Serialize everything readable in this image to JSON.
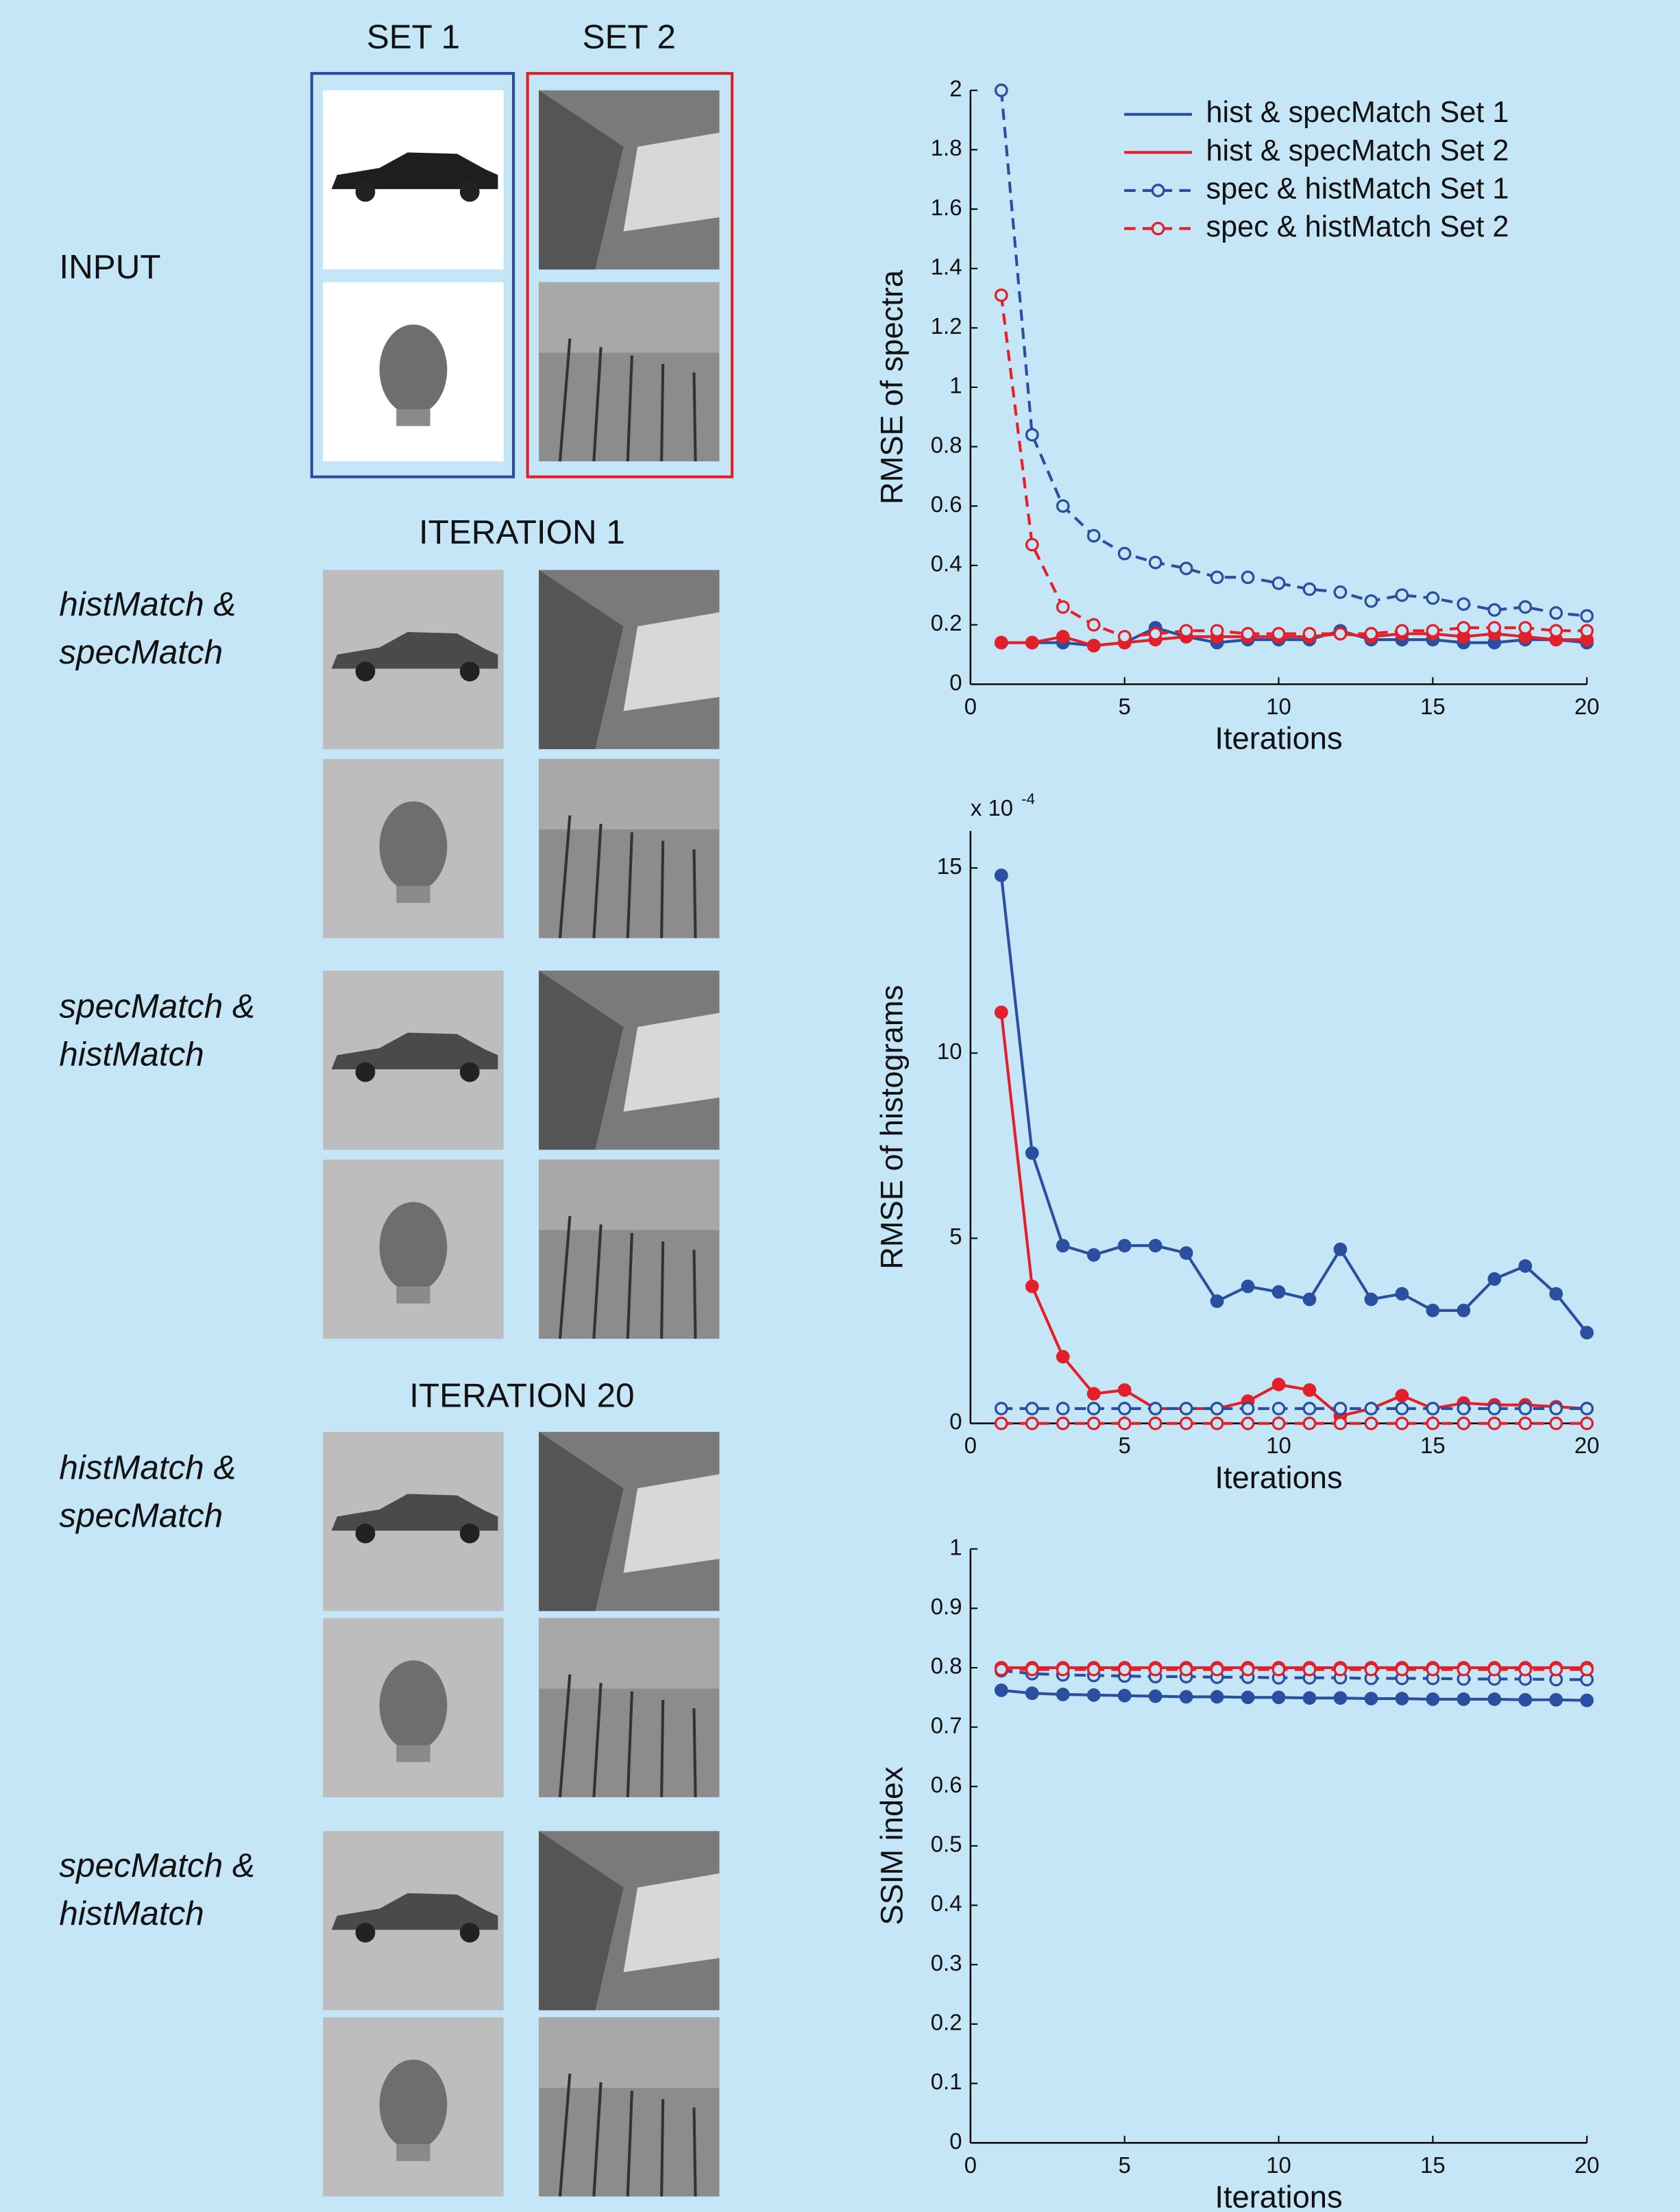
{
  "panel": {
    "column_headers": [
      "SET 1",
      "SET 2"
    ],
    "input_label": "INPUT",
    "sections": [
      {
        "title": "ITERATION 1",
        "rows": [
          [
            "histMatch &",
            "specMatch"
          ],
          [
            "specMatch &",
            "histMatch"
          ]
        ]
      },
      {
        "title": "ITERATION 20",
        "rows": [
          [
            "histMatch &",
            "specMatch"
          ],
          [
            "specMatch &",
            "histMatch"
          ]
        ]
      }
    ]
  },
  "chart_data": [
    {
      "type": "line",
      "y_label": "RMSE of spectra",
      "x_label": "Iterations",
      "x": [
        1,
        2,
        3,
        4,
        5,
        6,
        7,
        8,
        9,
        10,
        11,
        12,
        13,
        14,
        15,
        16,
        17,
        18,
        19,
        20
      ],
      "xlim": [
        0,
        20
      ],
      "xticks": [
        0,
        5,
        10,
        15,
        20
      ],
      "ylim": [
        0,
        2
      ],
      "yticks": [
        0,
        0.2,
        0.4,
        0.6,
        0.8,
        1,
        1.2,
        1.4,
        1.6,
        1.8,
        2
      ],
      "legend": "upper right",
      "series": [
        {
          "name": "hist & specMatch Set 1",
          "color": "#2a4ea0",
          "linestyle": "solid",
          "marker": "filled",
          "values": [
            0.14,
            0.14,
            0.14,
            0.13,
            0.14,
            0.19,
            0.16,
            0.14,
            0.15,
            0.15,
            0.15,
            0.18,
            0.15,
            0.15,
            0.15,
            0.14,
            0.14,
            0.15,
            0.15,
            0.14
          ]
        },
        {
          "name": "hist & specMatch Set 2",
          "color": "#e3202a",
          "linestyle": "solid",
          "marker": "filled",
          "values": [
            0.14,
            0.14,
            0.16,
            0.13,
            0.14,
            0.15,
            0.16,
            0.16,
            0.16,
            0.16,
            0.16,
            0.17,
            0.16,
            0.17,
            0.17,
            0.16,
            0.17,
            0.16,
            0.15,
            0.15
          ]
        },
        {
          "name": "spec & histMatch Set 1",
          "color": "#2a4ea0",
          "linestyle": "dashed",
          "marker": "open",
          "values": [
            2.0,
            0.84,
            0.6,
            0.5,
            0.44,
            0.41,
            0.39,
            0.36,
            0.36,
            0.34,
            0.32,
            0.31,
            0.28,
            0.3,
            0.29,
            0.27,
            0.25,
            0.26,
            0.24,
            0.23
          ]
        },
        {
          "name": "spec & histMatch Set 2",
          "color": "#e3202a",
          "linestyle": "dashed",
          "marker": "open",
          "values": [
            1.31,
            0.47,
            0.26,
            0.2,
            0.16,
            0.17,
            0.18,
            0.18,
            0.17,
            0.17,
            0.17,
            0.17,
            0.17,
            0.18,
            0.18,
            0.19,
            0.19,
            0.19,
            0.18,
            0.18
          ]
        }
      ]
    },
    {
      "type": "line",
      "y_label": "RMSE of histograms",
      "x_label": "Iterations",
      "y_multiplier": "x 10",
      "y_multiplier_exponent": "-4",
      "x": [
        1,
        2,
        3,
        4,
        5,
        6,
        7,
        8,
        9,
        10,
        11,
        12,
        13,
        14,
        15,
        16,
        17,
        18,
        19,
        20
      ],
      "xlim": [
        0,
        20
      ],
      "xticks": [
        0,
        5,
        10,
        15,
        20
      ],
      "ylim": [
        0,
        16
      ],
      "yticks": [
        0,
        5,
        10,
        15
      ],
      "series": [
        {
          "color": "#2a4ea0",
          "linestyle": "solid",
          "marker": "filled",
          "values": [
            14.8,
            7.3,
            4.8,
            4.55,
            4.8,
            4.8,
            4.6,
            3.3,
            3.7,
            3.55,
            3.35,
            4.7,
            3.35,
            3.5,
            3.05,
            3.05,
            3.9,
            4.25,
            3.5,
            2.45
          ]
        },
        {
          "color": "#e3202a",
          "linestyle": "solid",
          "marker": "filled",
          "values": [
            11.1,
            3.7,
            1.8,
            0.8,
            0.9,
            0.4,
            0.4,
            0.4,
            0.6,
            1.05,
            0.9,
            0.2,
            0.4,
            0.75,
            0.4,
            0.55,
            0.5,
            0.5,
            0.45,
            0.4
          ]
        },
        {
          "color": "#2a4ea0",
          "linestyle": "dashed",
          "marker": "open",
          "values": [
            0.4,
            0.4,
            0.4,
            0.4,
            0.4,
            0.4,
            0.4,
            0.4,
            0.4,
            0.4,
            0.4,
            0.4,
            0.4,
            0.4,
            0.4,
            0.4,
            0.4,
            0.4,
            0.4,
            0.4
          ]
        },
        {
          "color": "#e3202a",
          "linestyle": "dashed",
          "marker": "open",
          "values": [
            0,
            0,
            0,
            0,
            0,
            0,
            0,
            0,
            0,
            0,
            0,
            0,
            0,
            0,
            0,
            0,
            0,
            0,
            0,
            0
          ]
        }
      ]
    },
    {
      "type": "line",
      "y_label": "SSIM index",
      "x_label": "Iterations",
      "x": [
        1,
        2,
        3,
        4,
        5,
        6,
        7,
        8,
        9,
        10,
        11,
        12,
        13,
        14,
        15,
        16,
        17,
        18,
        19,
        20
      ],
      "xlim": [
        0,
        20
      ],
      "xticks": [
        0,
        5,
        10,
        15,
        20
      ],
      "ylim": [
        0,
        1
      ],
      "yticks": [
        0,
        0.1,
        0.2,
        0.3,
        0.4,
        0.5,
        0.6,
        0.7,
        0.8,
        0.9,
        1
      ],
      "series": [
        {
          "color": "#2a4ea0",
          "linestyle": "solid",
          "marker": "filled",
          "values": [
            0.762,
            0.757,
            0.755,
            0.754,
            0.753,
            0.752,
            0.751,
            0.751,
            0.75,
            0.75,
            0.749,
            0.749,
            0.748,
            0.748,
            0.747,
            0.747,
            0.747,
            0.746,
            0.746,
            0.745
          ]
        },
        {
          "color": "#e3202a",
          "linestyle": "solid",
          "marker": "filled",
          "values": [
            0.8,
            0.8,
            0.8,
            0.8,
            0.8,
            0.8,
            0.8,
            0.8,
            0.8,
            0.8,
            0.8,
            0.8,
            0.8,
            0.8,
            0.8,
            0.8,
            0.8,
            0.8,
            0.8,
            0.8
          ]
        },
        {
          "color": "#2a4ea0",
          "linestyle": "dashed",
          "marker": "open",
          "values": [
            0.795,
            0.79,
            0.788,
            0.787,
            0.786,
            0.785,
            0.785,
            0.784,
            0.784,
            0.783,
            0.783,
            0.783,
            0.782,
            0.782,
            0.782,
            0.781,
            0.781,
            0.781,
            0.78,
            0.78
          ]
        },
        {
          "color": "#e3202a",
          "linestyle": "dashed",
          "marker": "open",
          "values": [
            0.797,
            0.797,
            0.797,
            0.797,
            0.797,
            0.797,
            0.797,
            0.797,
            0.797,
            0.797,
            0.797,
            0.797,
            0.797,
            0.797,
            0.797,
            0.797,
            0.797,
            0.797,
            0.797,
            0.797
          ]
        }
      ]
    }
  ]
}
